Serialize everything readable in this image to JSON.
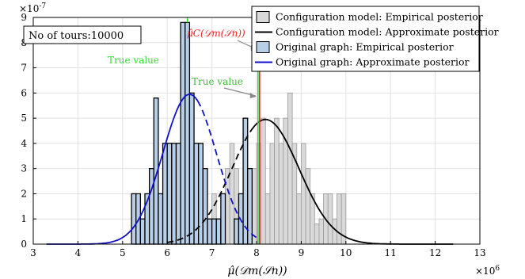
{
  "chart_data": {
    "type": "bar",
    "title": "",
    "xlabel": "μ̂(𝒟m(𝒮n))",
    "ylabel": "",
    "x_exponent_label": "×10",
    "x_exponent_power": "6",
    "y_exponent_label": "×10",
    "y_exponent_power": "-7",
    "xlim": [
      3,
      13
    ],
    "ylim": [
      0,
      9
    ],
    "xticks": [
      3,
      4,
      5,
      6,
      7,
      8,
      9,
      10,
      11,
      12,
      13
    ],
    "yticks": [
      0,
      1,
      2,
      3,
      4,
      5,
      6,
      7,
      8,
      9
    ],
    "grid": true,
    "legend_position": "top-right",
    "tours_label": "No of tours:10000",
    "colors": {
      "config_fill": "#d9d9d9",
      "original_fill": "#b8cfe8",
      "config_curve": "#000000",
      "original_curve": "#1010c8",
      "true_value": "#33dd33",
      "estimate": "#ee2222",
      "annotation_gray": "#888888"
    },
    "series": [
      {
        "name": "Configuration model: Empirical posterior",
        "kind": "histogram",
        "bin_width": 0.1,
        "bins": [
          [
            6.2,
            0.4
          ],
          [
            6.9,
            0.4
          ],
          [
            7.0,
            2.0
          ],
          [
            7.1,
            1.0
          ],
          [
            7.2,
            2.0
          ],
          [
            7.3,
            3.0
          ],
          [
            7.4,
            4.0
          ],
          [
            7.5,
            3.0
          ],
          [
            7.6,
            2.0
          ],
          [
            7.7,
            5.0
          ],
          [
            7.8,
            3.0
          ],
          [
            7.9,
            3.0
          ],
          [
            8.0,
            4.0
          ],
          [
            8.1,
            5.0
          ],
          [
            8.2,
            2.0
          ],
          [
            8.3,
            4.0
          ],
          [
            8.4,
            5.0
          ],
          [
            8.5,
            4.0
          ],
          [
            8.6,
            5.0
          ],
          [
            8.7,
            6.0
          ],
          [
            8.8,
            4.0
          ],
          [
            8.9,
            2.0
          ],
          [
            9.0,
            4.0
          ],
          [
            9.1,
            3.0
          ],
          [
            9.2,
            2.0
          ],
          [
            9.3,
            0.8
          ],
          [
            9.4,
            1.0
          ],
          [
            9.5,
            2.0
          ],
          [
            9.6,
            2.0
          ],
          [
            9.7,
            1.0
          ],
          [
            9.8,
            2.0
          ],
          [
            9.9,
            2.0
          ]
        ]
      },
      {
        "name": "Configuration model: Approximate posterior",
        "kind": "curve",
        "mean": 8.2,
        "sd": 0.75,
        "peak": 4.95,
        "range": [
          6.0,
          12.4
        ]
      },
      {
        "name": "Original graph: Empirical posterior",
        "kind": "histogram",
        "bin_width": 0.1,
        "bins": [
          [
            5.2,
            2.0
          ],
          [
            5.3,
            2.0
          ],
          [
            5.4,
            1.0
          ],
          [
            5.5,
            2.0
          ],
          [
            5.6,
            3.0
          ],
          [
            5.7,
            5.8
          ],
          [
            5.8,
            2.0
          ],
          [
            5.9,
            4.0
          ],
          [
            6.0,
            4.0
          ],
          [
            6.1,
            4.0
          ],
          [
            6.2,
            4.0
          ],
          [
            6.3,
            8.8
          ],
          [
            6.4,
            8.8
          ],
          [
            6.5,
            6.0
          ],
          [
            6.6,
            4.0
          ],
          [
            6.7,
            4.0
          ],
          [
            6.8,
            3.0
          ],
          [
            6.9,
            1.0
          ],
          [
            7.0,
            1.0
          ],
          [
            7.1,
            1.0
          ],
          [
            7.2,
            2.0
          ],
          [
            7.5,
            1.0
          ],
          [
            7.6,
            2.0
          ],
          [
            7.7,
            5.0
          ],
          [
            7.8,
            3.0
          ]
        ]
      },
      {
        "name": "Original graph: Approximate posterior",
        "kind": "curve",
        "mean": 6.5,
        "sd": 0.6,
        "peak": 5.95,
        "range": [
          3.3,
          8.0
        ]
      }
    ],
    "annotations": [
      {
        "text": "True value",
        "kind": "true_value",
        "at_x": 6.45
      },
      {
        "text": "True value",
        "kind": "true_value",
        "at_x": 8.05
      },
      {
        "text": "μ̂C(𝒟m(𝒮n))",
        "kind": "estimate",
        "at_x": 8.05
      }
    ]
  }
}
